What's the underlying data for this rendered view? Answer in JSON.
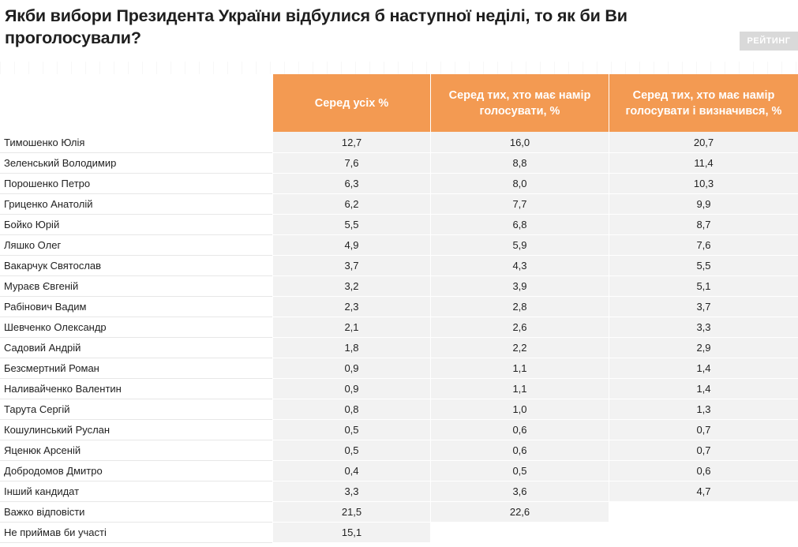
{
  "title_line1": "Якби вибори Президента України відбулися б наступної неділі, то як би Ви",
  "title_line2": "проголосували?",
  "brand": "РЕЙТИНГ",
  "chart_data": {
    "type": "table",
    "columns": [
      "Серед усіх %",
      "Серед тих, хто має намір голосувати, %",
      "Серед тих, хто має намір голосувати і визначився, %"
    ],
    "rows": [
      {
        "label": "Тимошенко Юлія",
        "values": [
          "12,7",
          "16,0",
          "20,7"
        ]
      },
      {
        "label": "Зеленський Володимир",
        "values": [
          "7,6",
          "8,8",
          "11,4"
        ]
      },
      {
        "label": "Порошенко Петро",
        "values": [
          "6,3",
          "8,0",
          "10,3"
        ]
      },
      {
        "label": "Гриценко Анатолій",
        "values": [
          "6,2",
          "7,7",
          "9,9"
        ]
      },
      {
        "label": "Бойко Юрій",
        "values": [
          "5,5",
          "6,8",
          "8,7"
        ]
      },
      {
        "label": "Ляшко Олег",
        "values": [
          "4,9",
          "5,9",
          "7,6"
        ]
      },
      {
        "label": "Вакарчук Святослав",
        "values": [
          "3,7",
          "4,3",
          "5,5"
        ]
      },
      {
        "label": "Мураєв Євгеній",
        "values": [
          "3,2",
          "3,9",
          "5,1"
        ]
      },
      {
        "label": "Рабінович Вадим",
        "values": [
          "2,3",
          "2,8",
          "3,7"
        ]
      },
      {
        "label": "Шевченко Олександр",
        "values": [
          "2,1",
          "2,6",
          "3,3"
        ]
      },
      {
        "label": "Садовий Андрій",
        "values": [
          "1,8",
          "2,2",
          "2,9"
        ]
      },
      {
        "label": "Безсмертний Роман",
        "values": [
          "0,9",
          "1,1",
          "1,4"
        ]
      },
      {
        "label": "Наливайченко Валентин",
        "values": [
          "0,9",
          "1,1",
          "1,4"
        ]
      },
      {
        "label": "Тарута Сергій",
        "values": [
          "0,8",
          "1,0",
          "1,3"
        ]
      },
      {
        "label": "Кошулинський Руслан",
        "values": [
          "0,5",
          "0,6",
          "0,7"
        ]
      },
      {
        "label": "Яценюк Арсеній",
        "values": [
          "0,5",
          "0,6",
          "0,7"
        ]
      },
      {
        "label": "Добродомов Дмитро",
        "values": [
          "0,4",
          "0,5",
          "0,6"
        ]
      },
      {
        "label": "Інший кандидат",
        "values": [
          "3,3",
          "3,6",
          "4,7"
        ]
      },
      {
        "label": "Важко відповісти",
        "values": [
          "21,5",
          "22,6",
          null
        ]
      },
      {
        "label": "Не приймав би участі",
        "values": [
          "15,1",
          null,
          null
        ]
      }
    ]
  },
  "colors": {
    "header_bg": "#f39a52",
    "cell_bg": "#f2f2f2"
  }
}
